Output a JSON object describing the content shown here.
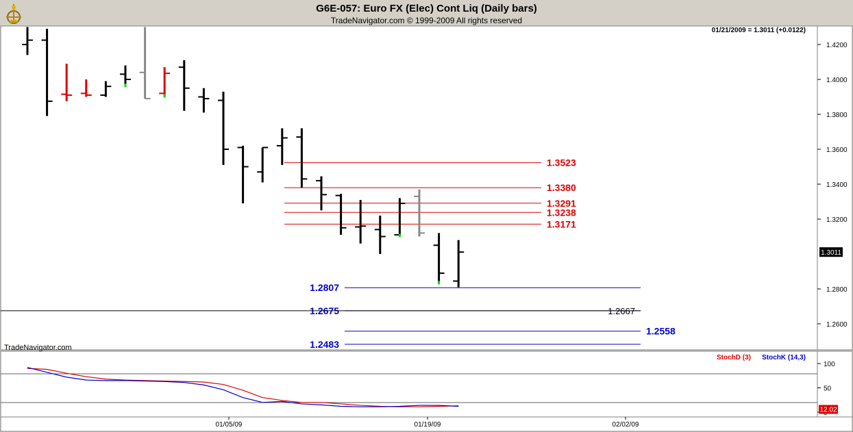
{
  "header": {
    "title": "G6E-057:  Euro FX (Elec) Cont Liq  (Daily bars)",
    "copyright": "TradeNavigator.com © 1999-2009 All rights reserved"
  },
  "readout": "01/21/2009 = 1.3011 (+0.0122)",
  "watermark": "TradeNavigator.com",
  "colors": {
    "up_bar": "#000000",
    "down_bar": "#dd0000",
    "neutral_bar": "#888888",
    "red_lines": "#dd0000",
    "blue_lines": "#0000cc",
    "close_tick": "#00dd00"
  },
  "chart_data": [
    {
      "type": "ohlc",
      "ylim": [
        1.24,
        1.43
      ],
      "y_ticks": [
        "1.4200",
        "1.4000",
        "1.3800",
        "1.3600",
        "1.3400",
        "1.3200",
        "1.2800",
        "1.2600"
      ],
      "x_ticks": [
        "01/05/09",
        "01/19/09",
        "02/02/09"
      ],
      "last_price_label": "1.3011",
      "bars": [
        {
          "o": 1.42,
          "h": 1.43,
          "l": 1.414,
          "c": 1.4225,
          "color": "black"
        },
        {
          "o": 1.4225,
          "h": 1.429,
          "l": 1.379,
          "c": 1.3875,
          "color": "black"
        },
        {
          "o": 1.3915,
          "h": 1.409,
          "l": 1.3875,
          "c": 1.391,
          "color": "red"
        },
        {
          "o": 1.392,
          "h": 1.4,
          "l": 1.39,
          "c": 1.391,
          "color": "red"
        },
        {
          "o": 1.391,
          "h": 1.399,
          "l": 1.39,
          "c": 1.396,
          "color": "black"
        },
        {
          "o": 1.403,
          "h": 1.408,
          "l": 1.396,
          "c": 1.4,
          "color": "black",
          "green_close": true
        },
        {
          "o": 1.404,
          "h": 1.43,
          "l": 1.389,
          "c": 1.389,
          "color": "gray"
        },
        {
          "o": 1.392,
          "h": 1.407,
          "l": 1.39,
          "c": 1.4035,
          "color": "red",
          "green_close": true
        },
        {
          "o": 1.407,
          "h": 1.411,
          "l": 1.382,
          "c": 1.395,
          "color": "black"
        },
        {
          "o": 1.39,
          "h": 1.395,
          "l": 1.381,
          "c": 1.389,
          "color": "black"
        },
        {
          "o": 1.388,
          "h": 1.393,
          "l": 1.351,
          "c": 1.36,
          "color": "black"
        },
        {
          "o": 1.361,
          "h": 1.362,
          "l": 1.329,
          "c": 1.35,
          "color": "black"
        },
        {
          "o": 1.347,
          "h": 1.361,
          "l": 1.341,
          "c": 1.361,
          "color": "black"
        },
        {
          "o": 1.362,
          "h": 1.372,
          "l": 1.351,
          "c": 1.3665,
          "color": "black"
        },
        {
          "o": 1.367,
          "h": 1.372,
          "l": 1.338,
          "c": 1.343,
          "color": "black"
        },
        {
          "o": 1.342,
          "h": 1.3445,
          "l": 1.325,
          "c": 1.334,
          "color": "black"
        },
        {
          "o": 1.3335,
          "h": 1.3345,
          "l": 1.311,
          "c": 1.315,
          "color": "black"
        },
        {
          "o": 1.3155,
          "h": 1.331,
          "l": 1.306,
          "c": 1.316,
          "color": "black"
        },
        {
          "o": 1.314,
          "h": 1.322,
          "l": 1.3,
          "c": 1.31,
          "color": "black"
        },
        {
          "o": 1.311,
          "h": 1.332,
          "l": 1.31,
          "c": 1.329,
          "color": "black",
          "green_close": true
        },
        {
          "o": 1.333,
          "h": 1.337,
          "l": 1.31,
          "c": 1.312,
          "color": "gray"
        },
        {
          "o": 1.305,
          "h": 1.312,
          "l": 1.283,
          "c": 1.289,
          "color": "black",
          "green_close": true
        },
        {
          "o": 1.2845,
          "h": 1.308,
          "l": 1.281,
          "c": 1.3011,
          "color": "black"
        }
      ],
      "levels": [
        {
          "label": "1.3523",
          "value": 1.3523,
          "color": "red",
          "span": "right"
        },
        {
          "label": "1.3380",
          "value": 1.338,
          "color": "red",
          "span": "right"
        },
        {
          "label": "1.3291",
          "value": 1.3291,
          "color": "red",
          "span": "right"
        },
        {
          "label": "1.3238",
          "value": 1.3238,
          "color": "red",
          "span": "right"
        },
        {
          "label": "1.3171",
          "value": 1.3171,
          "color": "red",
          "span": "right"
        },
        {
          "label": "1.2807",
          "value": 1.2807,
          "color": "blue",
          "span": "left"
        },
        {
          "label": "1.2675",
          "value": 1.2675,
          "color": "blue",
          "span": "left"
        },
        {
          "label": "1.2558",
          "value": 1.2558,
          "color": "blue",
          "span": "right2"
        },
        {
          "label": "1.2483",
          "value": 1.2483,
          "color": "blue",
          "span": "left"
        }
      ],
      "black_level": {
        "label": "1.2667",
        "value": 1.2667
      }
    },
    {
      "type": "line",
      "ylim": [
        0,
        100
      ],
      "y_ticks": [
        "100",
        "50",
        "0"
      ],
      "series": [
        {
          "name": "StochD (3)",
          "color": "#dd0000",
          "values": [
            90,
            88,
            80,
            73,
            68,
            66,
            65,
            64,
            63,
            62,
            57,
            45,
            30,
            24,
            20,
            20,
            17,
            14,
            12,
            11,
            11,
            12,
            13
          ]
        },
        {
          "name": "StochK (14,3)",
          "color": "#0000cc",
          "values": [
            92,
            82,
            72,
            66,
            65,
            65,
            64,
            63,
            61,
            56,
            46,
            30,
            20,
            22,
            17,
            15,
            12,
            11,
            11,
            12,
            14,
            14,
            12
          ]
        }
      ],
      "last_value_label": "12.02"
    }
  ]
}
